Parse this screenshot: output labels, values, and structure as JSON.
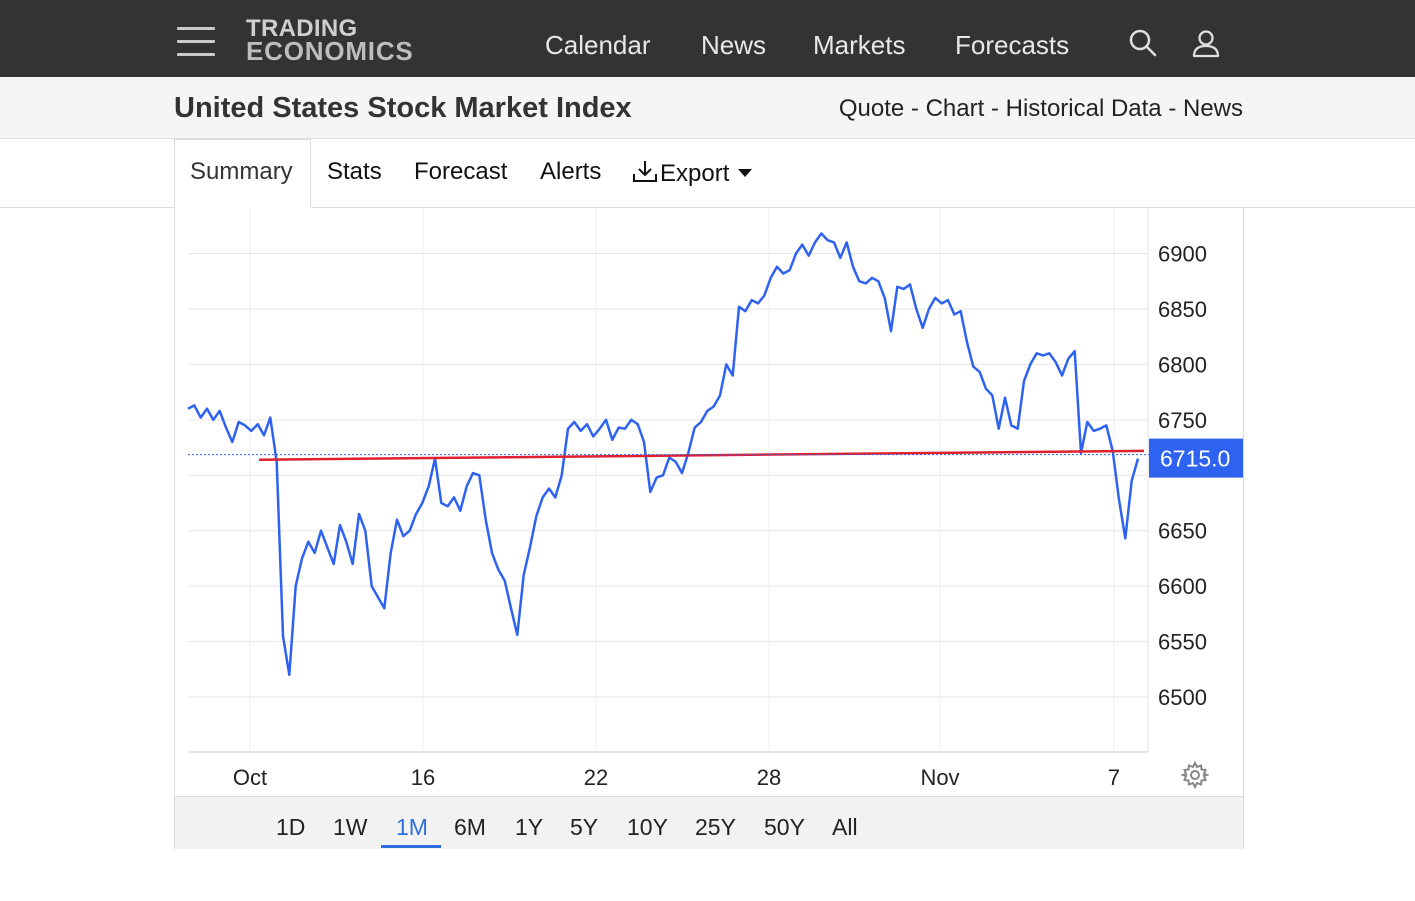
{
  "header": {
    "logo_line1": "TRADING",
    "logo_line2": "ECONOMICS",
    "nav": [
      "Calendar",
      "News",
      "Markets",
      "Forecasts"
    ],
    "icons": [
      "menu-icon",
      "search-icon",
      "user-icon"
    ]
  },
  "subheader": {
    "title": "United States Stock Market Index",
    "links": [
      "Quote",
      "Chart",
      "Historical Data",
      "News"
    ],
    "separator": " - "
  },
  "tabs": {
    "summary": "Summary",
    "stats": "Stats",
    "forecast": "Forecast",
    "alerts": "Alerts",
    "export": "Export"
  },
  "ranges": {
    "items": [
      "1D",
      "1W",
      "1M",
      "6M",
      "1Y",
      "5Y",
      "10Y",
      "25Y",
      "50Y",
      "All"
    ],
    "selected": "1M"
  },
  "colors": {
    "line": "#2e62f0",
    "trend": "#e0202d",
    "price_tag": "#2e62f0",
    "nav_bg": "#333333"
  },
  "chart_data": {
    "type": "line",
    "title": "",
    "xlabel": "",
    "ylabel": "",
    "x_ticks": [
      "Oct",
      "16",
      "22",
      "28",
      "Nov",
      "7"
    ],
    "y_ticks": [
      6500,
      6550,
      6600,
      6650,
      6750,
      6800,
      6850,
      6900
    ],
    "ylim": [
      6460,
      6935
    ],
    "grid": true,
    "current_value": 6715.0,
    "current_label": "6715.0",
    "trendline": {
      "start": 6714,
      "end": 6722
    },
    "series": [
      {
        "values": [
          6760,
          6763,
          6752,
          6760,
          6750,
          6758,
          6743,
          6730,
          6748,
          6745,
          6740,
          6746,
          6736,
          6752,
          6712,
          6555,
          6520,
          6600,
          6625,
          6640,
          6630,
          6650,
          6635,
          6620,
          6655,
          6640,
          6620,
          6665,
          6650,
          6600,
          6590,
          6580,
          6630,
          6660,
          6645,
          6650,
          6665,
          6675,
          6690,
          6715,
          6675,
          6672,
          6680,
          6668,
          6690,
          6702,
          6700,
          6660,
          6630,
          6615,
          6605,
          6580,
          6556,
          6610,
          6635,
          6663,
          6680,
          6688,
          6680,
          6700,
          6742,
          6748,
          6740,
          6746,
          6735,
          6742,
          6750,
          6732,
          6743,
          6742,
          6750,
          6746,
          6730,
          6685,
          6698,
          6700,
          6716,
          6712,
          6702,
          6720,
          6743,
          6748,
          6758,
          6762,
          6772,
          6800,
          6790,
          6852,
          6848,
          6858,
          6855,
          6862,
          6878,
          6888,
          6882,
          6885,
          6900,
          6908,
          6898,
          6910,
          6918,
          6912,
          6910,
          6896,
          6910,
          6888,
          6875,
          6873,
          6878,
          6875,
          6860,
          6830,
          6870,
          6868,
          6872,
          6850,
          6833,
          6850,
          6860,
          6855,
          6858,
          6845,
          6848,
          6820,
          6798,
          6793,
          6778,
          6772,
          6742,
          6770,
          6745,
          6742,
          6785,
          6800,
          6810,
          6808,
          6810,
          6802,
          6790,
          6805,
          6812,
          6720,
          6748,
          6740,
          6742,
          6745,
          6722,
          6678,
          6643,
          6695,
          6715
        ]
      }
    ]
  }
}
